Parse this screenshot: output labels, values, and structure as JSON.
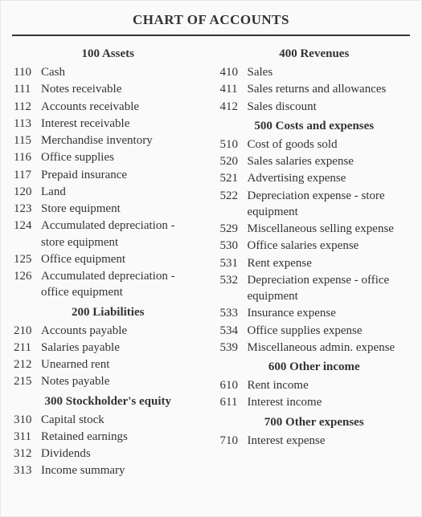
{
  "title": "CHART OF ACCOUNTS",
  "colors": {
    "text": "#333333",
    "background": "#fafafa",
    "rule": "#333333",
    "border": "#e6e6e6"
  },
  "typography": {
    "family": "Georgia, 'Times New Roman', serif",
    "title_fontsize": 17,
    "section_fontsize": 15,
    "body_fontsize": 15
  },
  "left": {
    "sections": [
      {
        "header": "100 Assets",
        "rows": [
          {
            "code": "110",
            "label": "Cash"
          },
          {
            "code": "111",
            "label": "Notes receivable"
          },
          {
            "code": "112",
            "label": "Accounts receivable"
          },
          {
            "code": "113",
            "label": "Interest receivable"
          },
          {
            "code": "115",
            "label": "Merchandise inventory"
          },
          {
            "code": "116",
            "label": "Office supplies"
          },
          {
            "code": "117",
            "label": "Prepaid insurance"
          },
          {
            "code": "120",
            "label": "Land"
          },
          {
            "code": "123",
            "label": "Store equipment"
          },
          {
            "code": "124",
            "label": "Accumulated depreciation - store equipment"
          },
          {
            "code": "125",
            "label": "Office equipment"
          },
          {
            "code": "126",
            "label": "Accumulated depreciation - office equipment"
          }
        ]
      },
      {
        "header": "200 Liabilities",
        "rows": [
          {
            "code": "210",
            "label": "Accounts payable"
          },
          {
            "code": "211",
            "label": "Salaries payable"
          },
          {
            "code": "212",
            "label": "Unearned rent"
          },
          {
            "code": "215",
            "label": "Notes payable"
          }
        ]
      },
      {
        "header": "300 Stockholder's equity",
        "rows": [
          {
            "code": "310",
            "label": "Capital stock"
          },
          {
            "code": "311",
            "label": "Retained earnings"
          },
          {
            "code": "312",
            "label": "Dividends"
          },
          {
            "code": "313",
            "label": "Income summary"
          }
        ]
      }
    ]
  },
  "right": {
    "sections": [
      {
        "header": "400 Revenues",
        "rows": [
          {
            "code": "410",
            "label": "Sales"
          },
          {
            "code": "411",
            "label": "Sales returns and allowances"
          },
          {
            "code": "412",
            "label": "Sales discount"
          }
        ]
      },
      {
        "header": "500 Costs and expenses",
        "rows": [
          {
            "code": "510",
            "label": "Cost of goods sold"
          },
          {
            "code": "520",
            "label": "Sales salaries expense"
          },
          {
            "code": "521",
            "label": "Advertising expense"
          },
          {
            "code": "522",
            "label": "Depreciation expense - store equipment"
          },
          {
            "code": "529",
            "label": "Miscellaneous selling expense"
          },
          {
            "code": "530",
            "label": "Office salaries expense"
          },
          {
            "code": "531",
            "label": "Rent expense"
          },
          {
            "code": "532",
            "label": "Depreciation expense - office equipment"
          },
          {
            "code": "533",
            "label": "Insurance expense"
          },
          {
            "code": "534",
            "label": "Office supplies expense"
          },
          {
            "code": "539",
            "label": "Miscellaneous admin. expense"
          }
        ]
      },
      {
        "header": "600 Other income",
        "rows": [
          {
            "code": "610",
            "label": "Rent income"
          },
          {
            "code": "611",
            "label": "Interest income"
          }
        ]
      },
      {
        "header": "700 Other expenses",
        "rows": [
          {
            "code": "710",
            "label": "Interest expense"
          }
        ]
      }
    ]
  }
}
